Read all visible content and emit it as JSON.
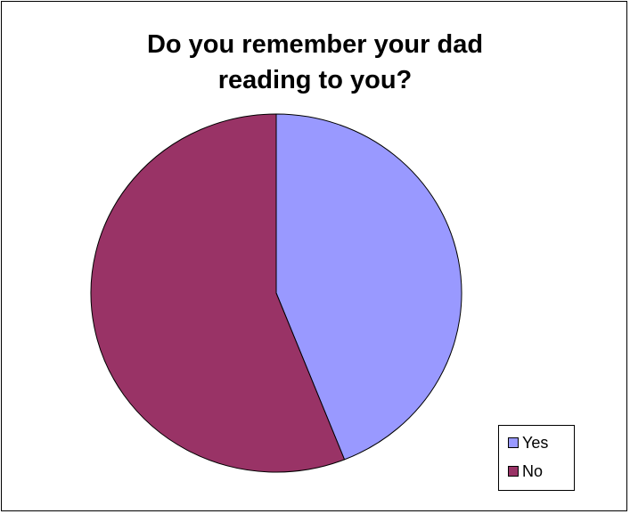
{
  "chart_data": {
    "type": "pie",
    "title_lines": [
      "Do you remember your dad",
      "reading to you?"
    ],
    "categories": [
      "Yes",
      "No"
    ],
    "values": [
      44,
      56
    ],
    "colors": [
      "#9999ff",
      "#993366"
    ],
    "legend": {
      "placement": "bottom-right",
      "entries": [
        "Yes",
        "No"
      ]
    }
  }
}
